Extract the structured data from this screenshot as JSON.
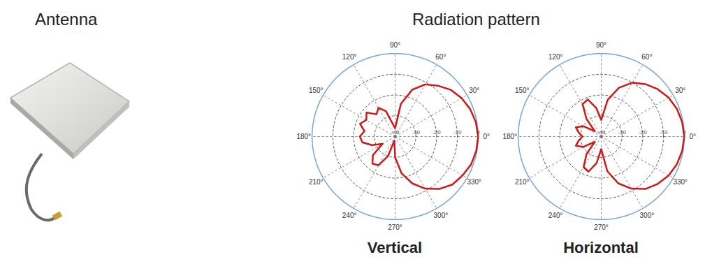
{
  "header": {
    "left": "Antenna",
    "right": "Radiation pattern"
  },
  "chart_data": [
    {
      "type": "polar",
      "title": "Vertical",
      "color": "#cc1a1a",
      "grid": true,
      "theta": [
        0,
        10,
        20,
        30,
        40,
        50,
        60,
        70,
        80,
        90,
        100,
        110,
        120,
        130,
        140,
        150,
        160,
        170,
        180,
        190,
        200,
        210,
        220,
        230,
        240,
        250,
        260,
        270,
        280,
        290,
        300,
        310,
        320,
        330,
        340,
        350
      ],
      "values": [
        0,
        -0.5,
        -1.5,
        -3,
        -5,
        -8,
        -11,
        -16,
        -24,
        -36,
        -34,
        -27,
        -24,
        -26,
        -22,
        -24,
        -22,
        -25,
        -23,
        -24,
        -28,
        -33,
        -26,
        -23,
        -24,
        -30,
        -38,
        -30,
        -22,
        -16,
        -11,
        -7,
        -4,
        -2.5,
        -1,
        -0.3
      ],
      "rlim": [
        -40,
        0
      ],
      "rticks": [
        -40,
        -30,
        -20,
        -10,
        0
      ],
      "theta_ticks": [
        {
          "value": 0,
          "label": "0°"
        },
        {
          "value": 30,
          "label": "30°"
        },
        {
          "value": 60,
          "label": "60°"
        },
        {
          "value": 90,
          "label": "90°"
        },
        {
          "value": 120,
          "label": "120°"
        },
        {
          "value": 150,
          "label": "150°"
        },
        {
          "value": 180,
          "label": "180°"
        },
        {
          "value": 210,
          "label": "210°"
        },
        {
          "value": 240,
          "label": "240°"
        },
        {
          "value": 270,
          "label": "270°"
        },
        {
          "value": 300,
          "label": "300°"
        },
        {
          "value": 330,
          "label": "330°"
        }
      ]
    },
    {
      "type": "polar",
      "title": "Horizontal",
      "color": "#cc1a1a",
      "grid": true,
      "theta": [
        0,
        10,
        20,
        30,
        40,
        50,
        60,
        70,
        80,
        90,
        100,
        110,
        120,
        130,
        140,
        150,
        160,
        170,
        180,
        190,
        200,
        210,
        220,
        230,
        240,
        250,
        260,
        270,
        280,
        290,
        300,
        310,
        320,
        330,
        340,
        350
      ],
      "values": [
        0,
        -0.4,
        -1.2,
        -2.5,
        -4.5,
        -7,
        -10,
        -15,
        -22,
        -32,
        -26,
        -21,
        -22,
        -29,
        -36,
        -30,
        -27,
        -29,
        -31,
        -29,
        -27,
        -30,
        -36,
        -29,
        -23,
        -22,
        -27,
        -34,
        -23,
        -16,
        -11,
        -7,
        -4.5,
        -2.5,
        -1.2,
        -0.4
      ],
      "rlim": [
        -40,
        0
      ],
      "rticks": [
        -40,
        -30,
        -20,
        -10,
        0
      ],
      "theta_ticks": [
        {
          "value": 0,
          "label": "0°"
        },
        {
          "value": 30,
          "label": "30°"
        },
        {
          "value": 60,
          "label": "60°"
        },
        {
          "value": 90,
          "label": "90°"
        },
        {
          "value": 120,
          "label": "120°"
        },
        {
          "value": 150,
          "label": "150°"
        },
        {
          "value": 180,
          "label": "180°"
        },
        {
          "value": 210,
          "label": "210°"
        },
        {
          "value": 240,
          "label": "240°"
        },
        {
          "value": 270,
          "label": "270°"
        },
        {
          "value": 300,
          "label": "300°"
        },
        {
          "value": 330,
          "label": "330°"
        }
      ]
    }
  ]
}
